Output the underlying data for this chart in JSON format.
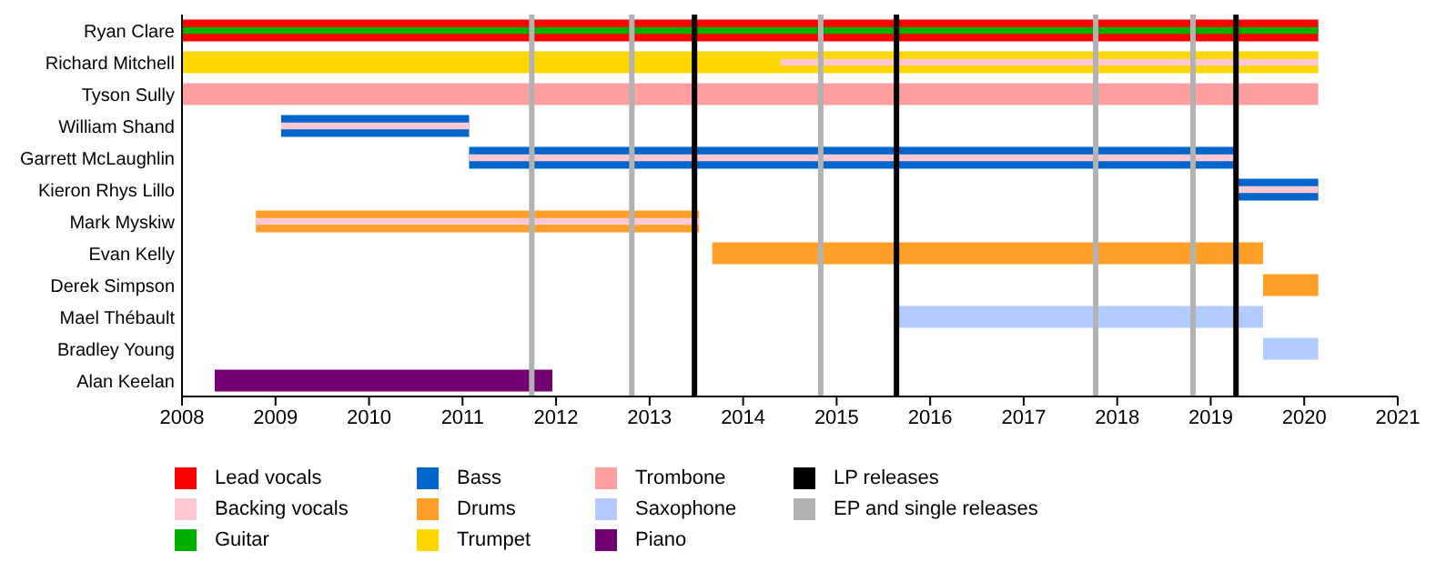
{
  "chart_data": {
    "type": "bar",
    "orientation": "horizontal",
    "categories": [
      "Ryan Clare",
      "Richard Mitchell",
      "Tyson Sully",
      "William Shand",
      "Garrett McLaughlin",
      "Kieron Rhys Lillo",
      "Mark Myskiw",
      "Evan Kelly",
      "Derek Simpson",
      "Mael Thébault",
      "Bradley Young",
      "Alan Keelan"
    ],
    "series": [
      {
        "name": "Lead vocals",
        "color": "#ff0000",
        "base": [
          2008,
          null,
          null,
          null,
          null,
          null,
          null,
          null,
          null,
          null,
          null,
          null
        ],
        "values": [
          12.15,
          null,
          null,
          null,
          null,
          null,
          null,
          null,
          null,
          null,
          null,
          null
        ]
      },
      {
        "name": "Backing vocals",
        "color": "#ffc8d2",
        "base": [
          null,
          2014.4,
          null,
          2009.06,
          2011.07,
          2019.29,
          2008.79,
          null,
          null,
          null,
          null,
          null
        ],
        "values": [
          null,
          5.75,
          null,
          2.01,
          8.22,
          0.86,
          4.74,
          null,
          null,
          null,
          null,
          null
        ]
      },
      {
        "name": "Guitar",
        "color": "#00b000",
        "base": [
          2008,
          null,
          null,
          null,
          null,
          null,
          null,
          null,
          null,
          null,
          null,
          null
        ],
        "values": [
          12.15,
          null,
          null,
          null,
          null,
          null,
          null,
          null,
          null,
          null,
          null,
          null
        ]
      },
      {
        "name": "Bass",
        "color": "#0066cc",
        "base": [
          null,
          null,
          null,
          2009.06,
          2011.07,
          2019.29,
          null,
          null,
          null,
          null,
          null,
          null
        ],
        "values": [
          null,
          null,
          null,
          2.01,
          8.22,
          0.86,
          null,
          null,
          null,
          null,
          null,
          null
        ]
      },
      {
        "name": "Drums",
        "color": "#ff9f28",
        "base": [
          null,
          null,
          null,
          null,
          null,
          null,
          2008.79,
          2013.67,
          2019.56,
          null,
          null,
          null
        ],
        "values": [
          null,
          null,
          null,
          null,
          null,
          null,
          4.74,
          5.89,
          0.59,
          null,
          null,
          null
        ]
      },
      {
        "name": "Trumpet",
        "color": "#ffd700",
        "base": [
          null,
          2008,
          null,
          null,
          null,
          null,
          null,
          null,
          null,
          null,
          null,
          null
        ],
        "values": [
          null,
          12.15,
          null,
          null,
          null,
          null,
          null,
          null,
          null,
          null,
          null,
          null
        ]
      },
      {
        "name": "Trombone",
        "color": "#ff9f9f",
        "base": [
          null,
          null,
          2008,
          null,
          null,
          null,
          null,
          null,
          null,
          null,
          null,
          null
        ],
        "values": [
          null,
          null,
          12.15,
          null,
          null,
          null,
          null,
          null,
          null,
          null,
          null,
          null
        ]
      },
      {
        "name": "Saxophone",
        "color": "#b4cbff",
        "base": [
          null,
          null,
          null,
          null,
          null,
          null,
          null,
          null,
          null,
          2015.64,
          2019.56,
          null
        ],
        "values": [
          null,
          null,
          null,
          null,
          null,
          null,
          null,
          null,
          null,
          3.92,
          0.59,
          null
        ]
      },
      {
        "name": "Piano",
        "color": "#730073",
        "base": [
          null,
          null,
          null,
          null,
          null,
          null,
          null,
          null,
          null,
          null,
          null,
          2008.35
        ],
        "values": [
          null,
          null,
          null,
          null,
          null,
          null,
          null,
          null,
          null,
          null,
          null,
          3.61
        ]
      }
    ],
    "xlim": [
      2008,
      2021
    ],
    "xticks": [
      2008,
      2009,
      2010,
      2011,
      2012,
      2013,
      2014,
      2015,
      2016,
      2017,
      2018,
      2019,
      2020,
      2021
    ],
    "ref_lines": [
      {
        "axis": "x",
        "value": 2013.48,
        "label": "LP releases",
        "color": "#000000"
      },
      {
        "axis": "x",
        "value": 2015.64,
        "label": null,
        "color": "#000000"
      },
      {
        "axis": "x",
        "value": 2019.27,
        "label": null,
        "color": "#000000"
      },
      {
        "axis": "x",
        "value": 2011.74,
        "label": "EP and single releases",
        "color": "#b2b2b2"
      },
      {
        "axis": "x",
        "value": 2012.81,
        "label": null,
        "color": "#b2b2b2"
      },
      {
        "axis": "x",
        "value": 2014.83,
        "label": null,
        "color": "#b2b2b2"
      },
      {
        "axis": "x",
        "value": 2017.77,
        "label": null,
        "color": "#b2b2b2"
      },
      {
        "axis": "x",
        "value": 2018.81,
        "label": null,
        "color": "#b2b2b2"
      }
    ],
    "grid": false,
    "legend": "bottom"
  }
}
